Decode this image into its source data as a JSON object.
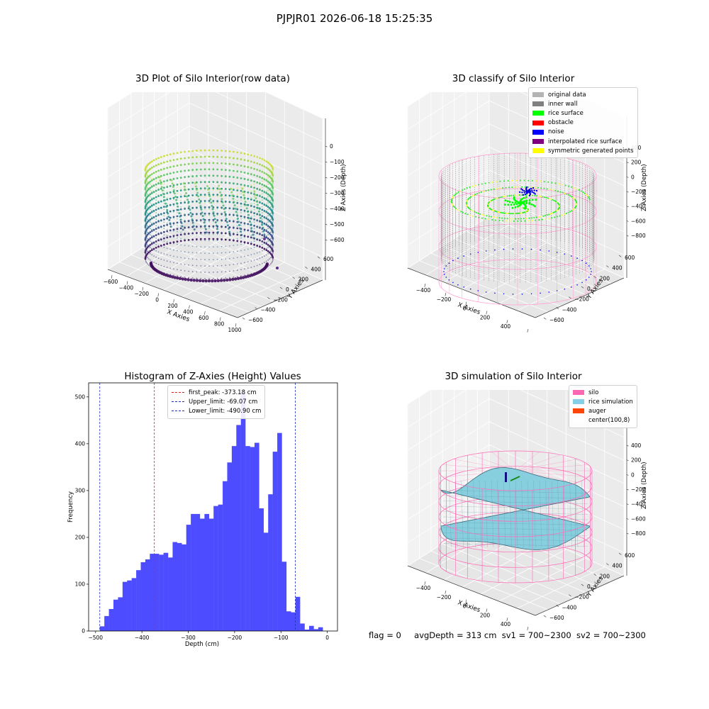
{
  "suptitle": "PJPJR01 2026-06-18 15:25:35",
  "colors": {
    "histogram_bar": "#4d4dff",
    "peak_line": "#e02020",
    "limit_line": "#2030c0",
    "silo_wire": "#ff69b4",
    "rice_surface": "#87cedf",
    "inner_wall": "#808080",
    "rice_points": "#00ff00",
    "noise_points": "#0000e0"
  },
  "footer": {
    "flag": "flag = 0",
    "avg_depth": "avgDepth = 313 cm",
    "sv1": "sv1 = 700~2300",
    "sv2": "sv2 = 700~2300"
  },
  "chart_data": [
    {
      "type": "scatter",
      "projection": "3d",
      "title": "3D Plot of Silo Interior(row data)",
      "xlabel": "X Axies",
      "ylabel": "Y Axies",
      "zlabel": "Z Axies (Depth)",
      "x_ticks": [
        "−600",
        "−400",
        "−200",
        "0",
        "200",
        "400",
        "600",
        "800",
        "1000"
      ],
      "y_ticks": [
        "−600",
        "−400",
        "−200",
        "0",
        "200",
        "400",
        "600"
      ],
      "z_ticks": [
        "0",
        "−100",
        "−200",
        "−300",
        "−400",
        "−500",
        "−600"
      ],
      "xlim": [
        -600,
        1000
      ],
      "ylim": [
        -600,
        600
      ],
      "zlim": [
        -600,
        0
      ],
      "colormap": "viridis",
      "grid": true
    },
    {
      "type": "scatter",
      "projection": "3d",
      "title": "3D classify of Silo Interior",
      "xlabel": "X Axies",
      "ylabel": "Y Axies",
      "zlabel": "Z Axies (Depth)",
      "x_ticks": [
        "−400",
        "−200",
        "0",
        "200",
        "400",
        "600"
      ],
      "y_ticks": [
        "−600",
        "−400",
        "−200",
        "0",
        "200",
        "400",
        "600"
      ],
      "z_ticks": [
        "400",
        "200",
        "0",
        "−200",
        "−400",
        "−600",
        "−800"
      ],
      "xlim": [
        -400,
        600
      ],
      "ylim": [
        -600,
        600
      ],
      "zlim": [
        -800,
        400
      ],
      "legend_position": "upper-right",
      "legend": [
        {
          "label": "original data",
          "color": "#b4b4b4"
        },
        {
          "label": "inner wall",
          "color": "#808080"
        },
        {
          "label": "rice surface",
          "color": "#00ff00"
        },
        {
          "label": "obstacle",
          "color": "#ff0000"
        },
        {
          "label": "noise",
          "color": "#0000ff"
        },
        {
          "label": "interpolated rice surface",
          "color": "#800080"
        },
        {
          "label": "symmetric generated points",
          "color": "#ffff00"
        }
      ],
      "grid": true
    },
    {
      "type": "bar",
      "subtype": "histogram",
      "title": "Histogram of Z-Axies (Height) Values",
      "xlabel": "Depth (cm)",
      "ylabel": "Frequency",
      "xlim": [
        -515,
        22
      ],
      "ylim": [
        0,
        530
      ],
      "x_ticks": [
        -500,
        -400,
        -300,
        -200,
        -100,
        0
      ],
      "y_ticks": [
        0,
        100,
        200,
        300,
        400,
        500
      ],
      "bin_start": -490.9,
      "bin_width": 9.82,
      "values": [
        10,
        32,
        47,
        67,
        72,
        105,
        108,
        113,
        130,
        147,
        153,
        165,
        165,
        163,
        167,
        157,
        190,
        188,
        185,
        227,
        250,
        250,
        240,
        250,
        240,
        267,
        270,
        320,
        360,
        395,
        440,
        510,
        395,
        393,
        402,
        262,
        210,
        292,
        383,
        423,
        148,
        42,
        40,
        73,
        16,
        3,
        11,
        4,
        8
      ],
      "vlines": [
        {
          "x": -373.18,
          "label": "first_peak: -373.18 cm",
          "color": "#e02020"
        },
        {
          "x": -69.07,
          "label": "Upper_limit: -69.07 cm",
          "color": "#2030c0"
        },
        {
          "x": -490.9,
          "label": "Lower_limit: -490.90 cm",
          "color": "#2030c0"
        }
      ],
      "legend_position": "upper-center",
      "grid": false
    },
    {
      "type": "area",
      "subtype": "surface",
      "projection": "3d",
      "title": "3D simulation of Silo Interior",
      "xlabel": "X Axies",
      "ylabel": "Y Axies",
      "zlabel": "Z Axies (Depth)",
      "x_ticks": [
        "−400",
        "−200",
        "0",
        "200",
        "400",
        "600"
      ],
      "y_ticks": [
        "−600",
        "−400",
        "−200",
        "0",
        "200",
        "400",
        "600"
      ],
      "z_ticks": [
        "400",
        "200",
        "0",
        "−200",
        "−400",
        "−600",
        "−800"
      ],
      "xlim": [
        -400,
        600
      ],
      "ylim": [
        -600,
        600
      ],
      "zlim": [
        -800,
        400
      ],
      "legend_position": "upper-right",
      "legend": [
        {
          "label": "silo",
          "color": "#ff69b4"
        },
        {
          "label": "rice simulation",
          "color": "#87ceeb"
        },
        {
          "label": "auger",
          "color": "#ff4500"
        },
        {
          "label": "center(100,8)",
          "color": "#ffffff"
        }
      ],
      "grid": true
    }
  ]
}
